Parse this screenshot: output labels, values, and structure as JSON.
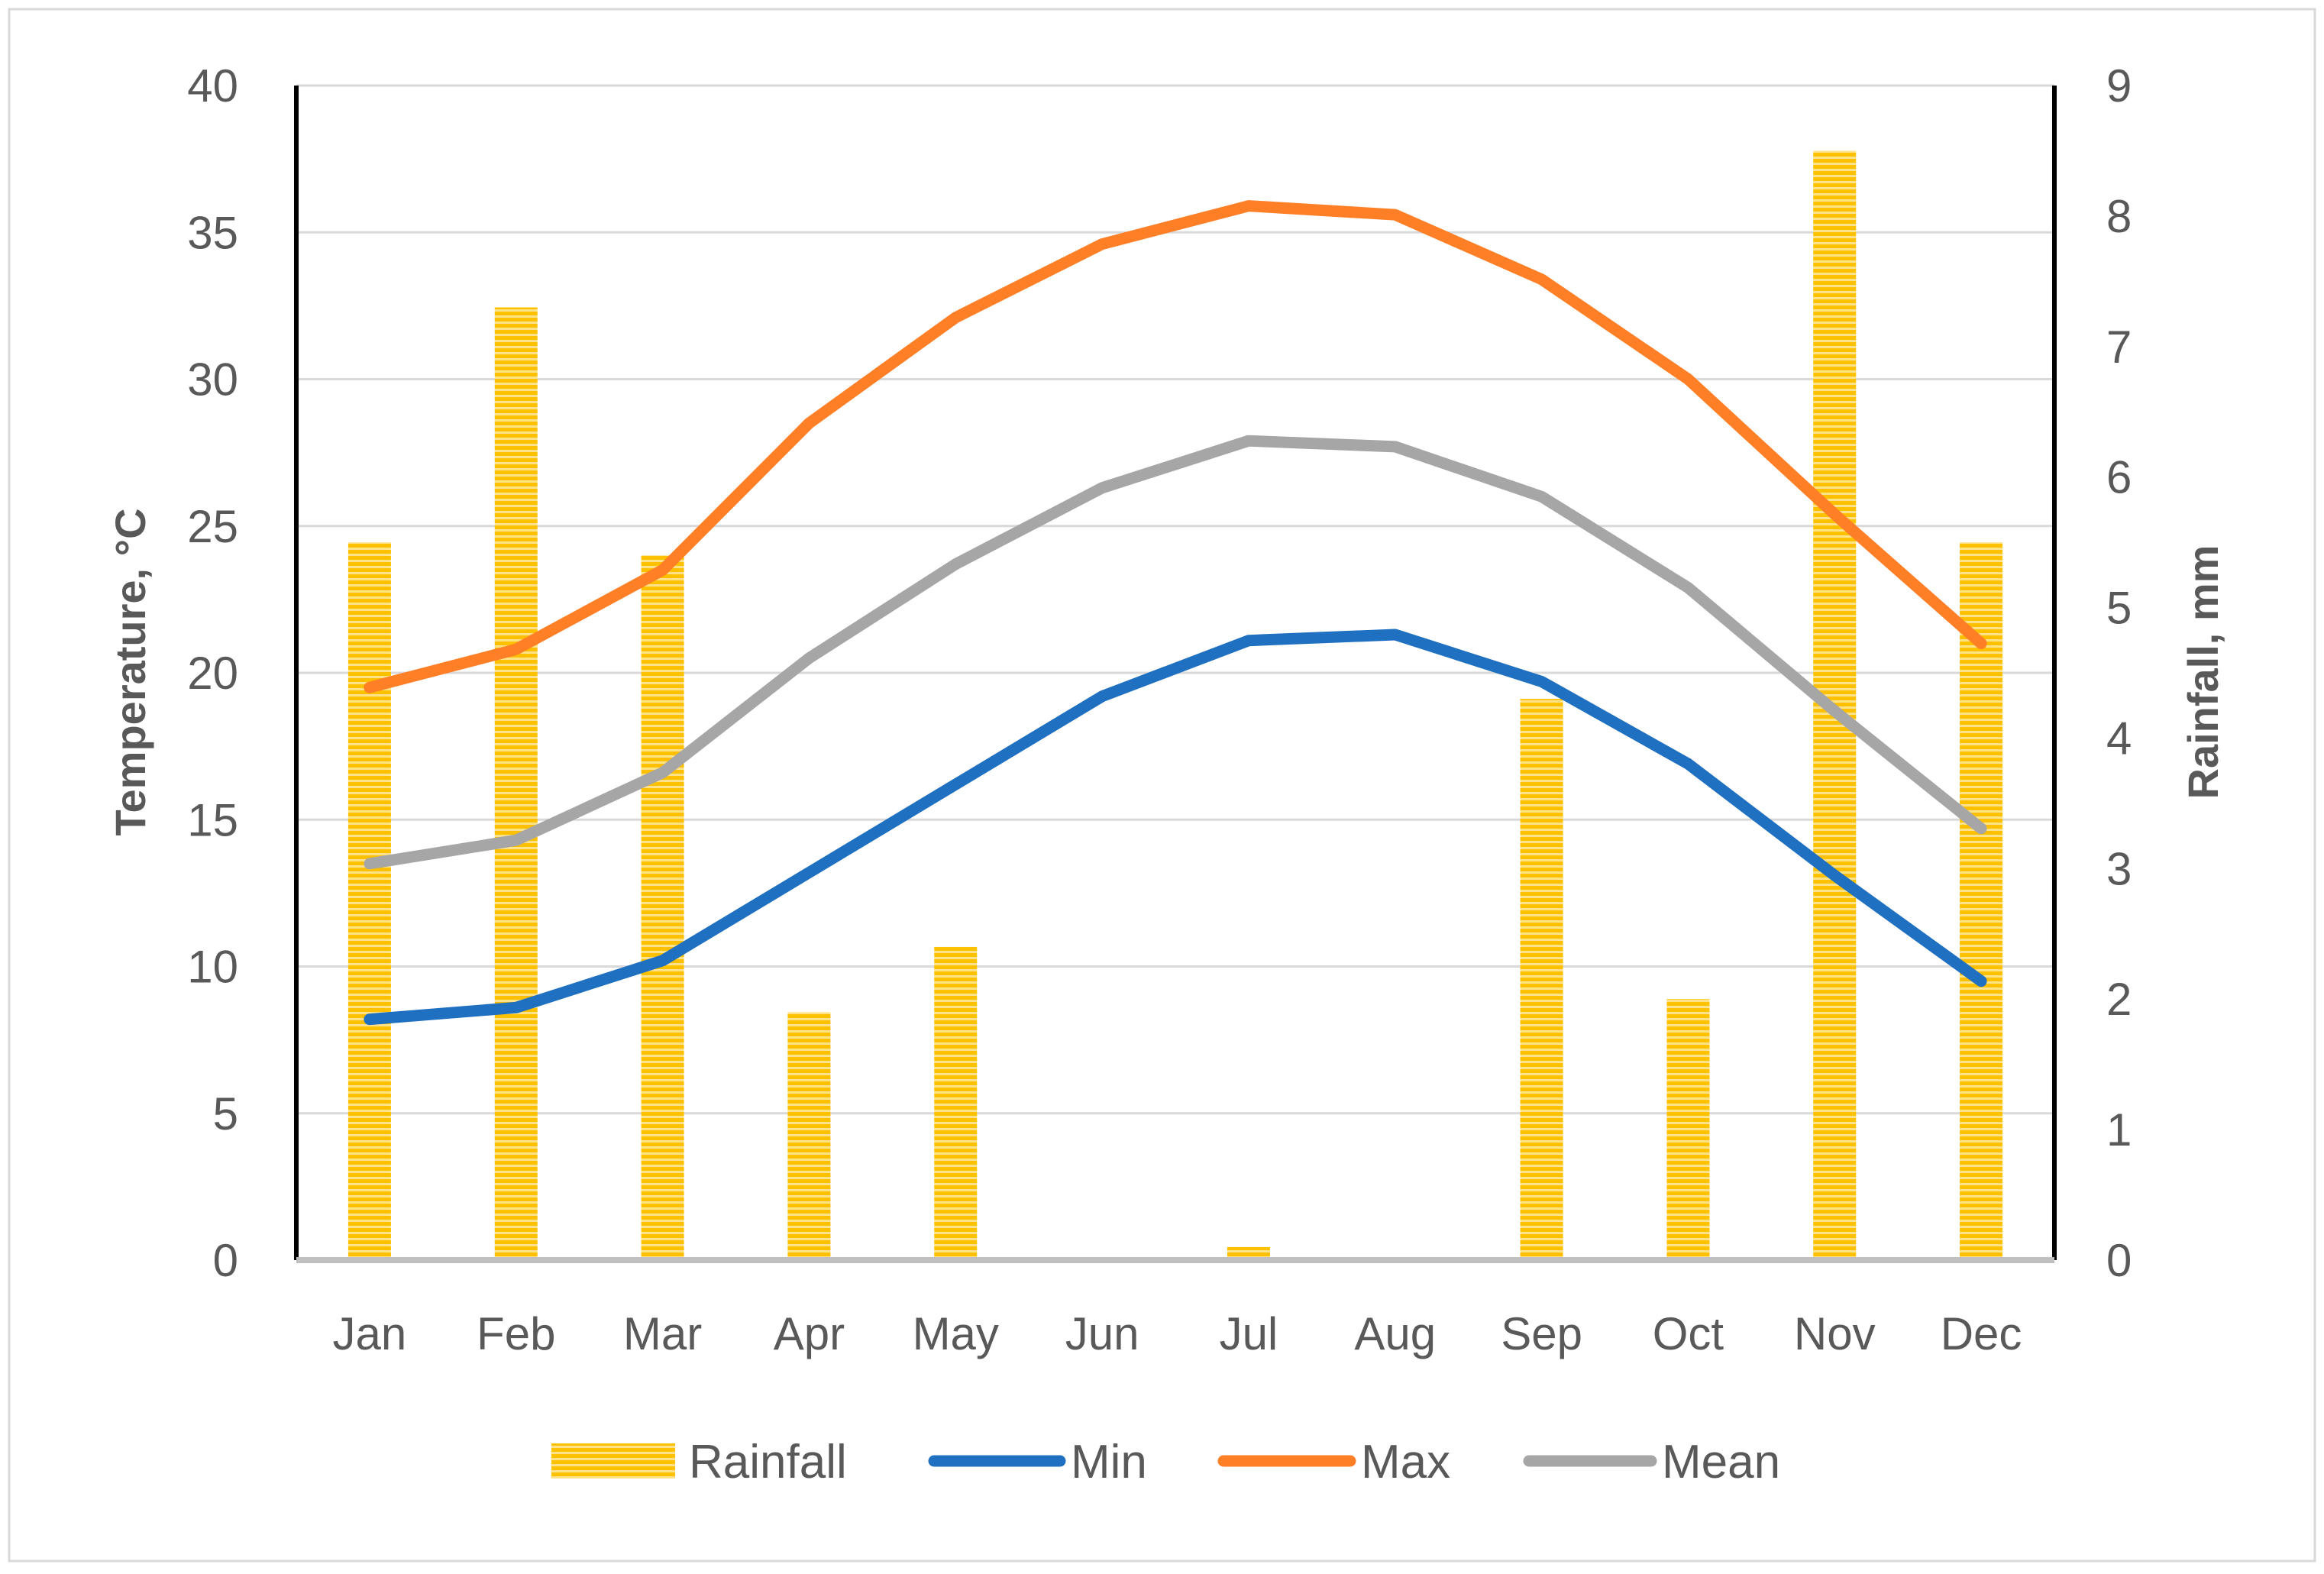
{
  "chart_data": {
    "type": "bar+line",
    "categories": [
      "Jan",
      "Feb",
      "Mar",
      "Apr",
      "May",
      "Jun",
      "Jul",
      "Aug",
      "Sep",
      "Oct",
      "Nov",
      "Dec"
    ],
    "left_axis": {
      "title": "Temperature, °C",
      "ylim": [
        0,
        40
      ],
      "ticks": [
        "0",
        "5",
        "10",
        "15",
        "20",
        "25",
        "30",
        "35",
        "40"
      ]
    },
    "right_axis": {
      "title": "Rainfall, mm",
      "ylim": [
        0,
        9
      ],
      "ticks": [
        "0",
        "1",
        "2",
        "3",
        "4",
        "5",
        "6",
        "7",
        "8",
        "9"
      ]
    },
    "bar_series": {
      "name": "Rainfall",
      "axis": "right",
      "color": "#FFC000",
      "values": [
        5.5,
        7.3,
        5.4,
        1.9,
        2.4,
        0.0,
        0.1,
        0.0,
        4.3,
        2.0,
        8.5,
        5.5
      ]
    },
    "line_series": [
      {
        "name": "Min",
        "axis": "left",
        "color": "#1F70C1",
        "values": [
          8.2,
          8.6,
          10.2,
          13.2,
          16.2,
          19.2,
          21.1,
          21.3,
          19.7,
          16.9,
          13.1,
          9.5
        ]
      },
      {
        "name": "Max",
        "axis": "left",
        "color": "#FF7F27",
        "values": [
          19.5,
          20.8,
          23.5,
          28.5,
          32.1,
          34.6,
          35.9,
          35.6,
          33.4,
          30.0,
          25.4,
          21.0
        ]
      },
      {
        "name": "Mean",
        "axis": "left",
        "color": "#A6A6A6",
        "values": [
          13.5,
          14.3,
          16.6,
          20.5,
          23.7,
          26.3,
          27.9,
          27.7,
          26.0,
          22.9,
          18.7,
          14.7
        ]
      }
    ],
    "legend": {
      "position": "bottom",
      "entries": [
        "Rainfall",
        "Min",
        "Max",
        "Mean"
      ]
    },
    "grid": true
  }
}
